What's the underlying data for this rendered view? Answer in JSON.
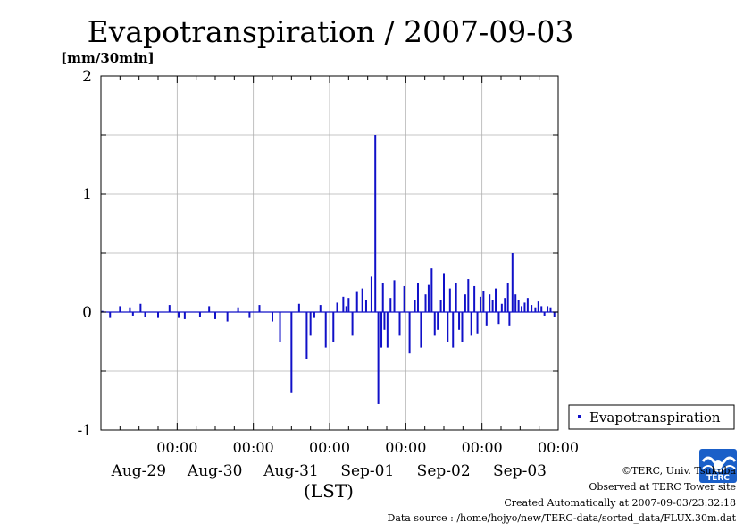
{
  "chart_data": {
    "type": "bar",
    "title": "Evapotranspiration / 2007-09-03",
    "ylabel": "[mm/30min]",
    "xlabel": "(LST)",
    "ylim": [
      -1,
      2
    ],
    "yticks": [
      "2",
      "1",
      "0",
      "-1"
    ],
    "xlim_days": [
      0,
      6
    ],
    "xticks": [
      {
        "time": "00:00",
        "date": "Aug-29"
      },
      {
        "time": "00:00",
        "date": "Aug-30"
      },
      {
        "time": "00:00",
        "date": "Aug-31"
      },
      {
        "time": "00:00",
        "date": "Sep-01"
      },
      {
        "time": "00:00",
        "date": "Sep-02"
      },
      {
        "time": "00:00",
        "date": "Sep-03"
      }
    ],
    "grid": true,
    "legend_position": "right",
    "color": "#1010c8",
    "series": [
      {
        "name": "Evapotranspiration",
        "x_days": [
          0.02,
          0.12,
          0.25,
          0.38,
          0.42,
          0.52,
          0.58,
          0.75,
          0.9,
          1.02,
          1.1,
          1.3,
          1.42,
          1.5,
          1.66,
          1.8,
          1.95,
          2.08,
          2.25,
          2.35,
          2.5,
          2.6,
          2.7,
          2.75,
          2.8,
          2.88,
          2.95,
          3.05,
          3.1,
          3.18,
          3.22,
          3.25,
          3.3,
          3.36,
          3.43,
          3.48,
          3.55,
          3.6,
          3.64,
          3.68,
          3.7,
          3.72,
          3.76,
          3.8,
          3.85,
          3.92,
          3.98,
          4.05,
          4.12,
          4.16,
          4.2,
          4.26,
          4.3,
          4.34,
          4.38,
          4.42,
          4.46,
          4.5,
          4.55,
          4.58,
          4.62,
          4.66,
          4.7,
          4.74,
          4.78,
          4.82,
          4.86,
          4.9,
          4.94,
          4.98,
          5.02,
          5.06,
          5.1,
          5.14,
          5.18,
          5.22,
          5.26,
          5.3,
          5.34,
          5.36,
          5.4,
          5.44,
          5.48,
          5.52,
          5.56,
          5.6,
          5.65,
          5.7,
          5.74,
          5.78,
          5.82,
          5.86,
          5.9,
          5.95
        ],
        "values": [
          0.01,
          -0.05,
          0.05,
          0.04,
          -0.03,
          0.07,
          -0.04,
          -0.05,
          0.06,
          -0.05,
          -0.06,
          -0.04,
          0.05,
          -0.06,
          -0.08,
          0.04,
          -0.05,
          0.06,
          -0.08,
          -0.25,
          -0.68,
          0.07,
          -0.4,
          -0.2,
          -0.05,
          0.06,
          -0.3,
          -0.25,
          0.08,
          0.13,
          0.05,
          0.12,
          -0.2,
          0.17,
          0.2,
          0.1,
          0.3,
          1.5,
          -0.78,
          -0.3,
          0.25,
          -0.15,
          -0.3,
          0.12,
          0.27,
          -0.2,
          0.22,
          -0.35,
          0.1,
          0.25,
          -0.3,
          0.15,
          0.23,
          0.37,
          -0.2,
          -0.15,
          0.1,
          0.33,
          -0.25,
          0.2,
          -0.3,
          0.25,
          -0.15,
          -0.25,
          0.15,
          0.28,
          -0.2,
          0.22,
          -0.18,
          0.13,
          0.18,
          -0.12,
          0.15,
          0.1,
          0.2,
          -0.1,
          0.07,
          0.12,
          0.25,
          -0.12,
          0.5,
          0.15,
          0.1,
          0.05,
          0.08,
          0.12,
          0.06,
          0.04,
          0.09,
          0.05,
          -0.03,
          0.05,
          0.04,
          -0.04
        ]
      }
    ]
  },
  "credits": {
    "copyright": "©TERC, Univ. Tsukuba",
    "observed": "Observed at TERC Tower site",
    "created": "Created Automatically at 2007-09-03/23:32:18",
    "source": "Data source : /home/hojyo/new/TERC-data/sorted_data/FLUX.30m.dat"
  },
  "logo": {
    "text": "TERC",
    "color": "#1a5fc8"
  }
}
